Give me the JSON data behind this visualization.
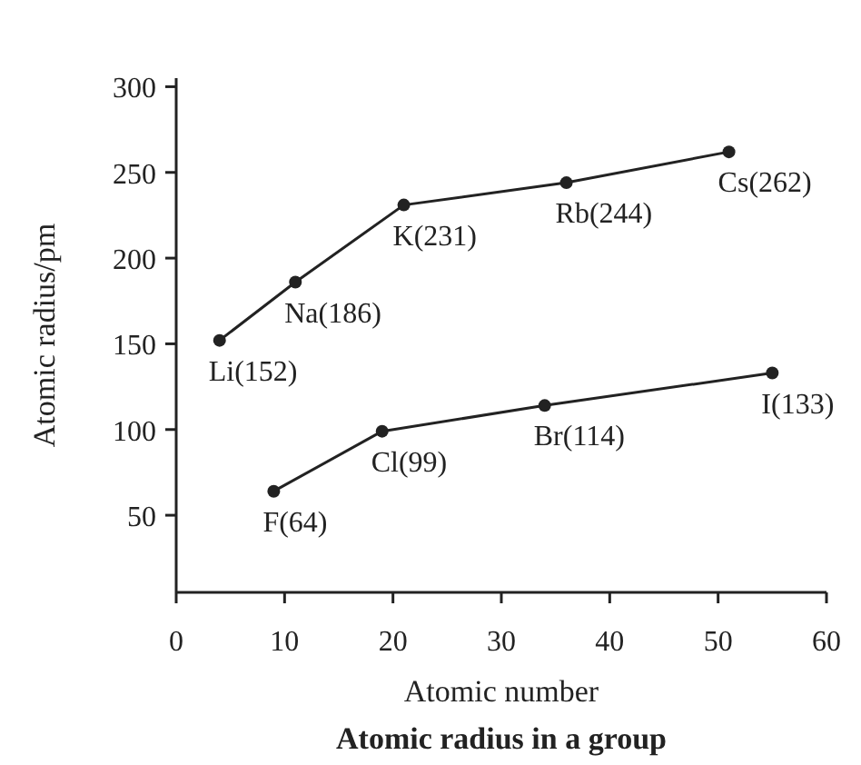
{
  "chart_data": {
    "type": "line",
    "title": "Atomic radius in a group",
    "xlabel": "Atomic number",
    "ylabel": "Atomic radius/pm",
    "xlim": [
      0,
      60
    ],
    "ylim": [
      5,
      305
    ],
    "xticks": [
      0,
      10,
      20,
      30,
      40,
      50,
      60
    ],
    "yticks": [
      50,
      100,
      150,
      200,
      250,
      300
    ],
    "marker": "circle",
    "line_style": "solid",
    "grid": false,
    "series": [
      {
        "color": "#222222",
        "x": [
          4,
          11,
          21,
          36,
          51
        ],
        "values": [
          152,
          186,
          231,
          244,
          262
        ],
        "value_labels": [
          "Li(152)",
          "Na(186)",
          "K(231)",
          "Rb(244)",
          "Cs(262)"
        ]
      },
      {
        "color": "#222222",
        "x": [
          9,
          19,
          34,
          55
        ],
        "values": [
          64,
          99,
          114,
          133
        ],
        "value_labels": [
          "F(64)",
          "Cl(99)",
          "Br(114)",
          "I(133)"
        ]
      }
    ]
  }
}
